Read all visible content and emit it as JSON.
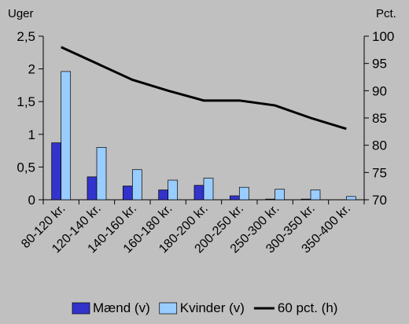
{
  "chart_data": {
    "type": "bar",
    "categories": [
      "80-120 kr.",
      "120-140 kr.",
      "140-160 kr.",
      "160-180 kr.",
      "180-200 kr.",
      "200-250 kr.",
      "250-300 kr.",
      "300-350 kr.",
      "350-400 kr."
    ],
    "series": [
      {
        "name": "Mænd (v)",
        "axis": "left",
        "type": "bar",
        "color": "#3333cc",
        "values": [
          0.87,
          0.35,
          0.21,
          0.15,
          0.22,
          0.06,
          0.01,
          0.01,
          0.0
        ]
      },
      {
        "name": "Kvinder (v)",
        "axis": "left",
        "type": "bar",
        "color": "#99ccff",
        "values": [
          1.96,
          0.8,
          0.46,
          0.3,
          0.33,
          0.19,
          0.16,
          0.15,
          0.05
        ]
      },
      {
        "name": "60 pct. (h)",
        "axis": "right",
        "type": "line",
        "color": "#000000",
        "values": [
          98,
          95,
          92,
          90,
          88.2,
          88.2,
          87.3,
          85,
          83
        ]
      }
    ],
    "left_axis": {
      "label": "Uger",
      "min": 0,
      "max": 2.5,
      "step": 0.5,
      "ticks": [
        "0",
        "0,5",
        "1",
        "1,5",
        "2",
        "2,5"
      ]
    },
    "right_axis": {
      "label": "Pct.",
      "min": 70,
      "max": 100,
      "step": 5,
      "ticks": [
        "70",
        "75",
        "80",
        "85",
        "90",
        "95",
        "100"
      ]
    },
    "legend": {
      "position": "bottom"
    },
    "grid": false
  },
  "colors": {
    "background": "#c0c0c0",
    "bar_outline": "#000000"
  }
}
